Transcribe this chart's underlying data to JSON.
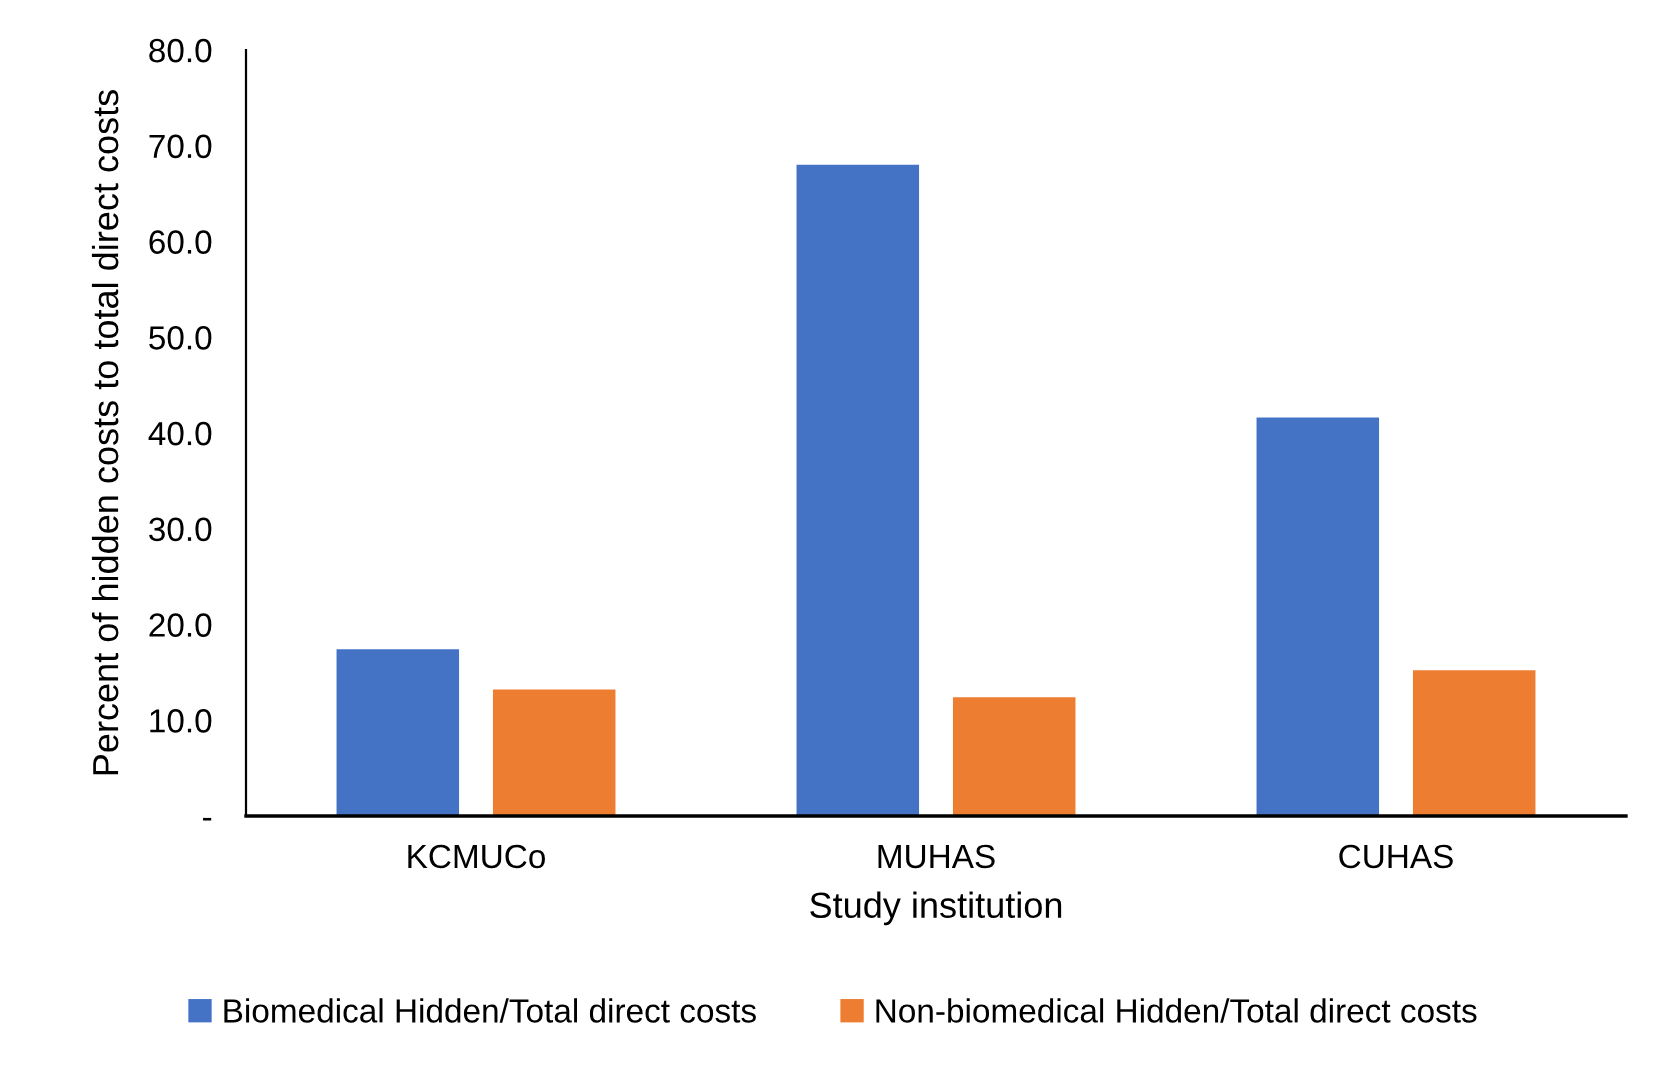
{
  "chart_data": {
    "type": "bar",
    "xlabel": "Study institution",
    "ylabel": "Percent of hidden costs to total direct costs",
    "categories": [
      "KCMUCo",
      "MUHAS",
      "CUHAS"
    ],
    "series": [
      {
        "name": "Biomedical Hidden/Total direct costs",
        "color": "#4472c4",
        "values": [
          17.5,
          68.1,
          41.7
        ]
      },
      {
        "name": "Non-biomedical Hidden/Total direct costs",
        "color": "#ed7d31",
        "values": [
          13.3,
          12.5,
          15.3
        ]
      }
    ],
    "ylim": [
      0,
      80
    ],
    "yticks": [
      {
        "value": 0,
        "label": "-"
      },
      {
        "value": 10,
        "label": "10.0"
      },
      {
        "value": 20,
        "label": "20.0"
      },
      {
        "value": 30,
        "label": "30.0"
      },
      {
        "value": 40,
        "label": "40.0"
      },
      {
        "value": 50,
        "label": "50.0"
      },
      {
        "value": 60,
        "label": "60.0"
      },
      {
        "value": 70,
        "label": "70.0"
      },
      {
        "value": 80,
        "label": "80.0"
      }
    ],
    "grid": false,
    "legend": "bottom"
  }
}
